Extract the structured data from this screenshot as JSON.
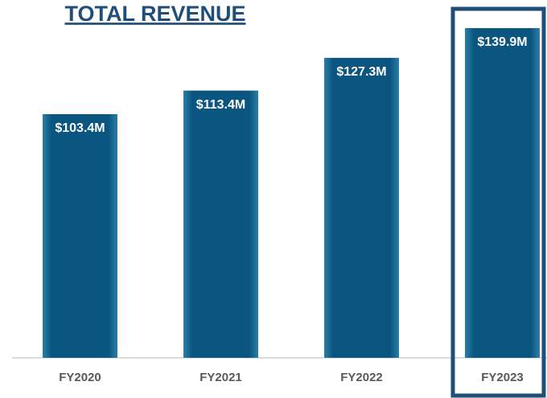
{
  "chart_data": {
    "type": "bar",
    "title": "TOTAL REVENUE",
    "categories": [
      "FY2020",
      "FY2021",
      "FY2022",
      "FY2023"
    ],
    "values": [
      103.4,
      113.4,
      127.3,
      139.9
    ],
    "value_labels": [
      "$103.4M",
      "$113.4M",
      "$127.3M",
      "$139.9M"
    ],
    "color": "#0b5680",
    "highlight": 3
  }
}
